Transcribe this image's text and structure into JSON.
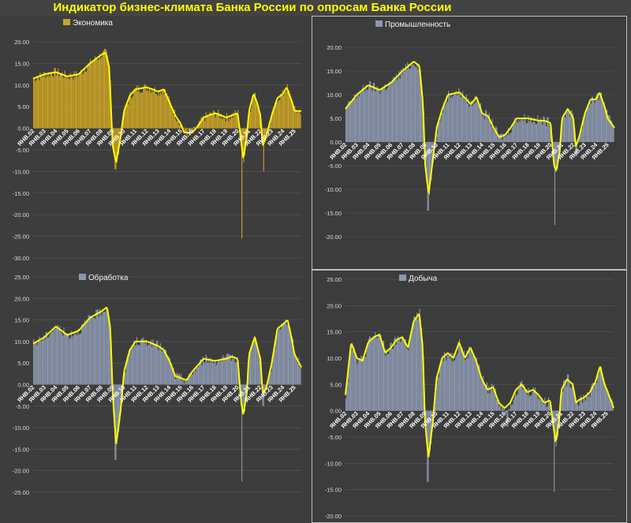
{
  "title": "Индикатор бизнес-климата Банка России по опросам Банка России",
  "colors": {
    "yellow": "#ffff00",
    "gold": "#c9a227",
    "gray": "#8c97ae",
    "grid": "#595959"
  },
  "chart_data": [
    {
      "type": "bar",
      "legend": "Экономика",
      "bar_color": "#c9a227",
      "ylim": [
        -30,
        20
      ],
      "yticks": [
        "-30.00",
        "-25.00",
        "-20.00",
        "-15.00",
        "-10.00",
        "-5.00",
        "0.00",
        "5.00",
        "10.00",
        "15.00",
        "20.00"
      ],
      "xticks": [
        "ЯНВ.02",
        "ЯНВ.03",
        "ЯНВ.04",
        "ЯНВ.05",
        "ЯНВ.06",
        "ЯНВ.07",
        "ЯНВ.08",
        "ЯНВ.09",
        "ЯНВ.10",
        "ЯНВ.11",
        "ЯНВ.12",
        "ЯНВ.13",
        "ЯНВ.14",
        "ЯНВ.15",
        "ЯНВ.16",
        "ЯНВ.17",
        "ЯНВ.18",
        "ЯНВ.19",
        "ЯНВ.20",
        "ЯНВ.21",
        "ЯНВ.22",
        "ЯНВ.23",
        "ЯНВ.24",
        "ЯНВ.25"
      ],
      "anchors": [
        [
          2002.0,
          11.5
        ],
        [
          2003.0,
          12.5
        ],
        [
          2004.0,
          13.0
        ],
        [
          2005.0,
          12.0
        ],
        [
          2006.0,
          12.5
        ],
        [
          2007.0,
          15.0
        ],
        [
          2008.0,
          17.0
        ],
        [
          2008.4,
          17.5
        ],
        [
          2008.7,
          14.0
        ],
        [
          2009.0,
          -4.0
        ],
        [
          2009.3,
          -8.0
        ],
        [
          2009.7,
          -2.0
        ],
        [
          2010.0,
          4.0
        ],
        [
          2010.5,
          7.5
        ],
        [
          2011.0,
          9.0
        ],
        [
          2012.0,
          9.5
        ],
        [
          2013.0,
          8.5
        ],
        [
          2013.5,
          9.0
        ],
        [
          2014.0,
          6.0
        ],
        [
          2014.5,
          3.0
        ],
        [
          2015.0,
          1.0
        ],
        [
          2015.3,
          -1.0
        ],
        [
          2016.0,
          -1.0
        ],
        [
          2016.5,
          0.5
        ],
        [
          2017.0,
          2.5
        ],
        [
          2018.0,
          3.5
        ],
        [
          2019.0,
          2.5
        ],
        [
          2019.5,
          3.0
        ],
        [
          2020.0,
          3.5
        ],
        [
          2020.3,
          -3.0
        ],
        [
          2020.5,
          -7.0
        ],
        [
          2020.8,
          -2.0
        ],
        [
          2021.0,
          4.0
        ],
        [
          2021.4,
          8.0
        ],
        [
          2021.7,
          6.0
        ],
        [
          2022.0,
          3.0
        ],
        [
          2022.2,
          -4.0
        ],
        [
          2022.5,
          -2.0
        ],
        [
          2023.0,
          3.0
        ],
        [
          2023.5,
          7.0
        ],
        [
          2024.0,
          8.0
        ],
        [
          2024.3,
          9.5
        ],
        [
          2024.8,
          6.0
        ],
        [
          2025.0,
          4.0
        ],
        [
          2025.6,
          4.0
        ]
      ],
      "spikes": [
        [
          2009.2,
          -9.5
        ],
        [
          2020.35,
          -25.5
        ],
        [
          2022.25,
          -10.0
        ]
      ]
    },
    {
      "type": "bar",
      "legend": "Промышленность",
      "bar_color": "#8c97ae",
      "ylim": [
        -20,
        20
      ],
      "yticks": [
        "-20.00",
        "-15.00",
        "-10.00",
        "-5.00",
        "0.00",
        "5.00",
        "10.00",
        "15.00",
        "20.00"
      ],
      "xticks": [
        "ЯНВ.02",
        "ЯНВ.03",
        "ЯНВ.04",
        "ЯНВ.05",
        "ЯНВ.06",
        "ЯНВ.07",
        "ЯНВ.08",
        "ЯНВ.09",
        "ЯНВ.10",
        "ЯНВ.11",
        "ЯНВ.12",
        "ЯНВ.13",
        "ЯНВ.14",
        "ЯНВ.15",
        "ЯНВ.16",
        "ЯНВ.17",
        "ЯНВ.18",
        "ЯНВ.19",
        "ЯНВ.20",
        "ЯНВ.21",
        "ЯНВ.22",
        "ЯНВ.23",
        "ЯНВ.24",
        "ЯНВ.25"
      ],
      "anchors": [
        [
          2002.0,
          7.0
        ],
        [
          2003.0,
          10.0
        ],
        [
          2004.0,
          12.0
        ],
        [
          2005.0,
          11.0
        ],
        [
          2006.0,
          12.5
        ],
        [
          2007.0,
          15.0
        ],
        [
          2008.0,
          17.0
        ],
        [
          2008.5,
          16.0
        ],
        [
          2008.8,
          8.0
        ],
        [
          2009.0,
          -5.0
        ],
        [
          2009.3,
          -11.0
        ],
        [
          2009.7,
          -3.0
        ],
        [
          2010.0,
          3.0
        ],
        [
          2010.5,
          7.0
        ],
        [
          2011.0,
          10.0
        ],
        [
          2012.0,
          10.5
        ],
        [
          2013.0,
          8.0
        ],
        [
          2013.5,
          9.5
        ],
        [
          2014.0,
          6.0
        ],
        [
          2014.5,
          5.5
        ],
        [
          2015.0,
          3.0
        ],
        [
          2015.5,
          1.0
        ],
        [
          2016.0,
          1.5
        ],
        [
          2016.5,
          3.0
        ],
        [
          2017.0,
          5.0
        ],
        [
          2018.0,
          5.0
        ],
        [
          2019.0,
          4.5
        ],
        [
          2019.5,
          4.5
        ],
        [
          2020.0,
          4.0
        ],
        [
          2020.3,
          -5.0
        ],
        [
          2020.5,
          -6.0
        ],
        [
          2020.8,
          -2.0
        ],
        [
          2021.0,
          5.0
        ],
        [
          2021.5,
          7.0
        ],
        [
          2022.0,
          5.0
        ],
        [
          2022.2,
          -1.0
        ],
        [
          2022.5,
          1.0
        ],
        [
          2023.0,
          6.0
        ],
        [
          2023.5,
          9.0
        ],
        [
          2024.0,
          9.0
        ],
        [
          2024.3,
          10.5
        ],
        [
          2024.8,
          7.0
        ],
        [
          2025.0,
          5.0
        ],
        [
          2025.6,
          3.0
        ]
      ],
      "spikes": [
        [
          2009.2,
          -14.5
        ],
        [
          2020.35,
          -17.5
        ],
        [
          2022.2,
          -3.0
        ]
      ]
    },
    {
      "type": "bar",
      "legend": "Обработка",
      "bar_color": "#8c97ae",
      "ylim": [
        -25,
        25
      ],
      "yticks": [
        "-25.00",
        "-20.00",
        "-15.00",
        "-10.00",
        "-5.00",
        "0.00",
        "5.00",
        "10.00",
        "15.00",
        "20.00",
        "25.00"
      ],
      "xticks": [
        "ЯНВ.02",
        "ЯНВ.03",
        "ЯНВ.04",
        "ЯНВ.05",
        "ЯНВ.06",
        "ЯНВ.07",
        "ЯНВ.08",
        "ЯНВ.09",
        "ЯНВ.10",
        "ЯНВ.11",
        "ЯНВ.12",
        "ЯНВ.13",
        "ЯНВ.14",
        "ЯНВ.15",
        "ЯНВ.16",
        "ЯНВ.17",
        "ЯНВ.18",
        "ЯНВ.19",
        "ЯНВ.20",
        "ЯНВ.21",
        "ЯНВ.22",
        "ЯНВ.23",
        "ЯНВ.24",
        "ЯНВ.25"
      ],
      "anchors": [
        [
          2002.0,
          9.5
        ],
        [
          2003.0,
          11.0
        ],
        [
          2004.0,
          13.5
        ],
        [
          2005.0,
          11.5
        ],
        [
          2006.0,
          12.5
        ],
        [
          2007.0,
          15.5
        ],
        [
          2008.0,
          17.0
        ],
        [
          2008.5,
          18.0
        ],
        [
          2008.8,
          13.0
        ],
        [
          2009.0,
          -2.0
        ],
        [
          2009.3,
          -14.0
        ],
        [
          2009.7,
          -6.0
        ],
        [
          2010.0,
          3.0
        ],
        [
          2010.5,
          8.0
        ],
        [
          2011.0,
          10.0
        ],
        [
          2012.0,
          10.0
        ],
        [
          2013.0,
          9.0
        ],
        [
          2013.5,
          8.0
        ],
        [
          2014.0,
          5.5
        ],
        [
          2014.5,
          2.0
        ],
        [
          2015.0,
          1.5
        ],
        [
          2015.5,
          1.0
        ],
        [
          2016.0,
          3.0
        ],
        [
          2016.5,
          4.5
        ],
        [
          2017.0,
          6.0
        ],
        [
          2018.0,
          5.5
        ],
        [
          2019.0,
          6.0
        ],
        [
          2019.5,
          6.5
        ],
        [
          2020.0,
          6.0
        ],
        [
          2020.3,
          -4.0
        ],
        [
          2020.5,
          -7.0
        ],
        [
          2020.8,
          -2.0
        ],
        [
          2021.0,
          7.0
        ],
        [
          2021.5,
          11.0
        ],
        [
          2022.0,
          6.0
        ],
        [
          2022.2,
          -2.0
        ],
        [
          2022.5,
          -1.0
        ],
        [
          2023.0,
          5.0
        ],
        [
          2023.5,
          13.0
        ],
        [
          2024.0,
          14.0
        ],
        [
          2024.4,
          15.0
        ],
        [
          2024.8,
          10.0
        ],
        [
          2025.0,
          7.0
        ],
        [
          2025.6,
          4.0
        ]
      ],
      "spikes": [
        [
          2009.2,
          -17.5
        ],
        [
          2020.35,
          -22.5
        ],
        [
          2022.2,
          -5.0
        ]
      ]
    },
    {
      "type": "bar",
      "legend": "Добыча",
      "bar_color": "#8c97ae",
      "ylim": [
        -20,
        25
      ],
      "yticks": [
        "-20.00",
        "-15.00",
        "-10.00",
        "-5.00",
        "0.00",
        "5.00",
        "10.00",
        "15.00",
        "20.00",
        "25.00"
      ],
      "xticks": [
        "ЯНВ.02",
        "ЯНВ.03",
        "ЯНВ.04",
        "ЯНВ.05",
        "ЯНВ.06",
        "ЯНВ.07",
        "ЯНВ.08",
        "ЯНВ.09",
        "ЯНВ.10",
        "ЯНВ.11",
        "ЯНВ.12",
        "ЯНВ.13",
        "ЯНВ.14",
        "ЯНВ.15",
        "ЯНВ.16",
        "ЯНВ.17",
        "ЯНВ.18",
        "ЯНВ.19",
        "ЯНВ.20",
        "ЯНВ.21",
        "ЯНВ.22",
        "ЯНВ.23",
        "ЯНВ.24",
        "ЯНВ.25"
      ],
      "anchors": [
        [
          2002.0,
          3.0
        ],
        [
          2002.5,
          13.0
        ],
        [
          2003.0,
          10.0
        ],
        [
          2003.5,
          9.5
        ],
        [
          2004.0,
          13.0
        ],
        [
          2004.5,
          14.0
        ],
        [
          2005.0,
          14.5
        ],
        [
          2005.5,
          11.0
        ],
        [
          2006.0,
          12.0
        ],
        [
          2006.5,
          13.5
        ],
        [
          2007.0,
          14.0
        ],
        [
          2007.5,
          12.0
        ],
        [
          2008.0,
          17.0
        ],
        [
          2008.5,
          18.5
        ],
        [
          2008.8,
          12.0
        ],
        [
          2009.0,
          -2.0
        ],
        [
          2009.3,
          -9.0
        ],
        [
          2009.7,
          -2.0
        ],
        [
          2010.0,
          6.0
        ],
        [
          2010.5,
          10.0
        ],
        [
          2011.0,
          11.0
        ],
        [
          2011.5,
          10.0
        ],
        [
          2012.0,
          13.0
        ],
        [
          2012.5,
          10.0
        ],
        [
          2013.0,
          12.0
        ],
        [
          2013.5,
          9.5
        ],
        [
          2014.0,
          6.0
        ],
        [
          2014.5,
          4.0
        ],
        [
          2015.0,
          4.5
        ],
        [
          2015.5,
          1.5
        ],
        [
          2016.0,
          0.5
        ],
        [
          2016.5,
          1.5
        ],
        [
          2017.0,
          4.0
        ],
        [
          2017.5,
          5.0
        ],
        [
          2018.0,
          3.5
        ],
        [
          2018.5,
          4.0
        ],
        [
          2019.0,
          3.0
        ],
        [
          2019.5,
          1.5
        ],
        [
          2020.0,
          2.0
        ],
        [
          2020.3,
          -3.0
        ],
        [
          2020.5,
          -6.0
        ],
        [
          2020.8,
          -2.0
        ],
        [
          2021.0,
          4.0
        ],
        [
          2021.5,
          6.0
        ],
        [
          2022.0,
          5.0
        ],
        [
          2022.3,
          1.5
        ],
        [
          2022.5,
          2.0
        ],
        [
          2023.0,
          2.5
        ],
        [
          2023.5,
          3.5
        ],
        [
          2024.0,
          5.5
        ],
        [
          2024.4,
          8.5
        ],
        [
          2024.8,
          5.0
        ],
        [
          2025.0,
          4.0
        ],
        [
          2025.6,
          0.5
        ]
      ],
      "spikes": [
        [
          2009.2,
          -13.5
        ],
        [
          2020.35,
          -15.5
        ],
        [
          2016.2,
          -3.0
        ]
      ]
    }
  ]
}
